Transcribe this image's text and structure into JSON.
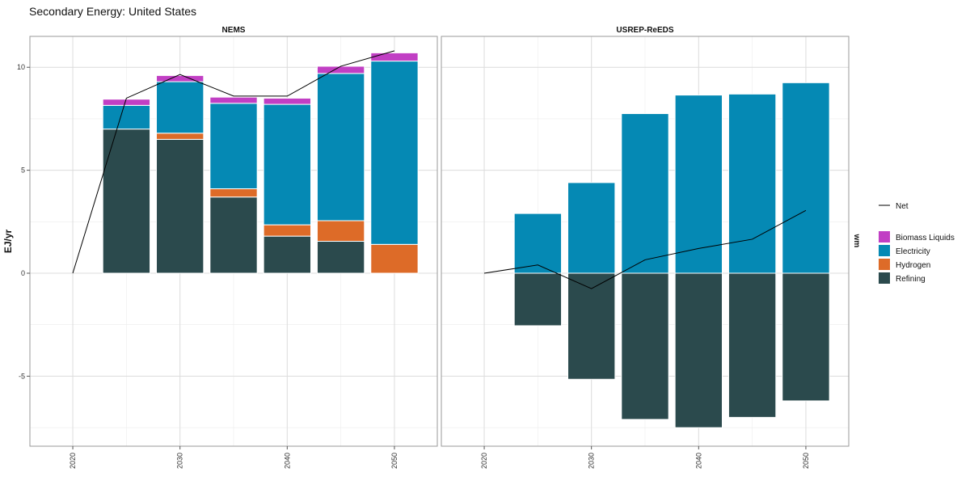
{
  "title": "Secondary Energy: United States",
  "chart_data": {
    "type": "bar",
    "ylabel": "EJ/yr",
    "ylim": [
      -8.4,
      11.5
    ],
    "xlim": [
      2016,
      2054
    ],
    "x_ticks": [
      2020,
      2030,
      2040,
      2050
    ],
    "y_ticks": [
      -5,
      0,
      5,
      10
    ],
    "legend_position": "right",
    "legend_line_label": "Net",
    "legend_side_label": "wm",
    "legend_entries": [
      {
        "name": "Biomass Liquids",
        "color": "#c13fc4"
      },
      {
        "name": "Electricity",
        "color": "#0589b4"
      },
      {
        "name": "Hydrogen",
        "color": "#dd6b28"
      },
      {
        "name": "Refining",
        "color": "#2b4a4d"
      }
    ],
    "stack_order": [
      "Refining",
      "Hydrogen",
      "Electricity",
      "Biomass Liquids"
    ],
    "line_color": "#000000",
    "panels": [
      {
        "name": "NEMS",
        "x": [
          2020,
          2025,
          2030,
          2035,
          2040,
          2045,
          2050
        ],
        "series": [
          {
            "name": "Refining",
            "values": [
              0,
              7.0,
              6.5,
              3.7,
              1.8,
              1.55,
              0
            ]
          },
          {
            "name": "Hydrogen",
            "values": [
              0,
              0,
              0.3,
              0.4,
              0.55,
              1.0,
              1.4
            ]
          },
          {
            "name": "Electricity",
            "values": [
              0,
              1.15,
              2.5,
              4.15,
              5.85,
              7.15,
              8.9
            ]
          },
          {
            "name": "Biomass Liquids",
            "values": [
              0,
              0.3,
              0.3,
              0.3,
              0.3,
              0.35,
              0.4
            ]
          }
        ],
        "net": [
          0,
          8.5,
          9.65,
          8.6,
          8.6,
          10.05,
          10.8
        ]
      },
      {
        "name": "USREP-ReEDS",
        "x": [
          2020,
          2025,
          2030,
          2035,
          2040,
          2045,
          2050
        ],
        "series": [
          {
            "name": "Refining",
            "values": [
              0,
              -2.55,
              -5.15,
              -7.1,
              -7.5,
              -7.0,
              -6.2
            ]
          },
          {
            "name": "Hydrogen",
            "values": [
              0,
              0,
              0,
              0,
              0,
              0,
              0
            ]
          },
          {
            "name": "Electricity",
            "values": [
              0,
              2.9,
              4.4,
              7.75,
              8.65,
              8.7,
              9.25
            ]
          },
          {
            "name": "Biomass Liquids",
            "values": [
              0,
              0,
              0,
              0,
              0,
              0,
              0
            ]
          }
        ],
        "net": [
          0,
          0.4,
          -0.75,
          0.65,
          1.2,
          1.65,
          3.05
        ]
      }
    ]
  }
}
